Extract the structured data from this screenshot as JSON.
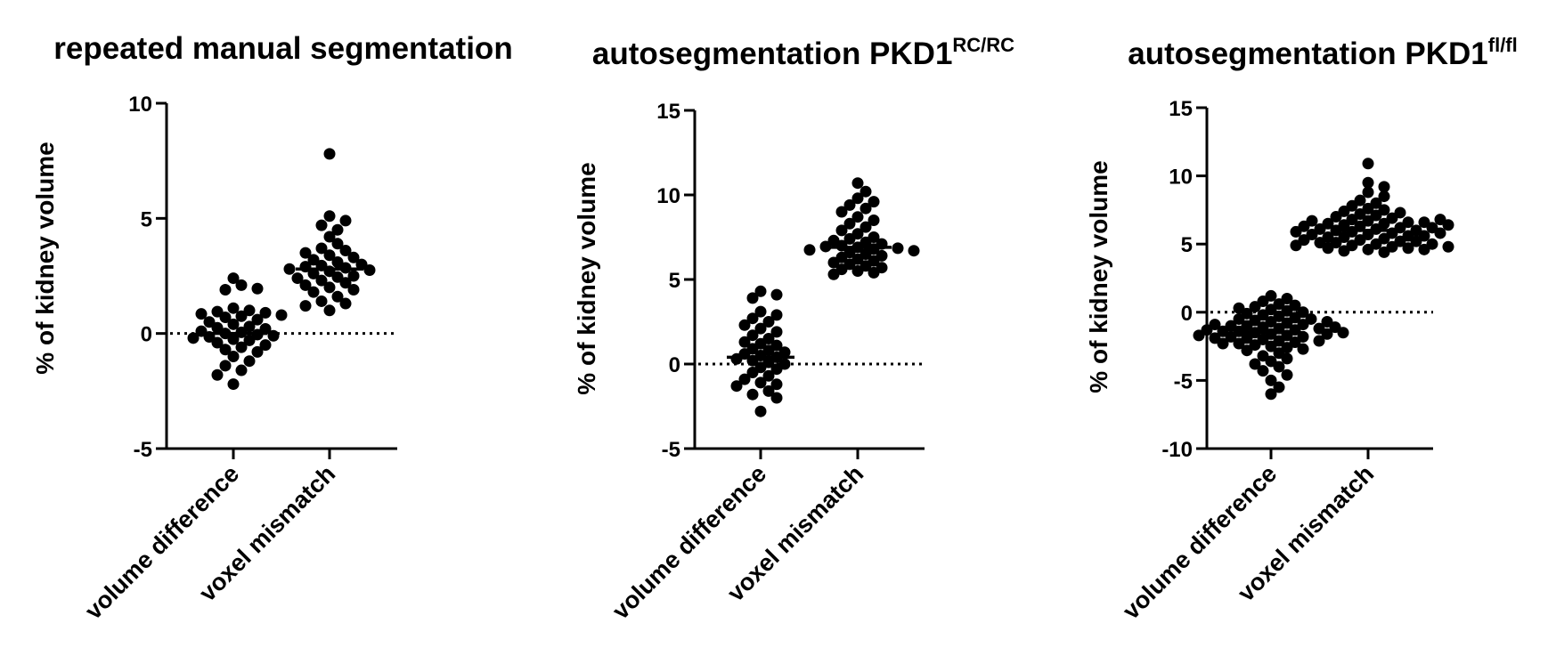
{
  "chart_data": [
    {
      "type": "scatter",
      "title": "repeated manual segmentation",
      "title_sup": "",
      "ylabel": "% of kidney volume",
      "ylim": [
        -5,
        10
      ],
      "yticks": [
        "10",
        "5",
        "0",
        "-5"
      ],
      "yticks_values": [
        10,
        5,
        0,
        -5
      ],
      "categories": [
        "volume difference",
        "voxel mismatch"
      ],
      "reference_line": {
        "y": 0,
        "style": "dotted"
      },
      "grid": false,
      "series": [
        {
          "values": [
            2.4,
            2.1,
            1.9,
            1.95,
            1.1,
            1.0,
            0.95,
            0.9,
            0.85,
            0.8,
            0.75,
            0.7,
            0.6,
            0.5,
            0.4,
            0.3,
            0.25,
            0.2,
            0.1,
            0.05,
            0.0,
            -0.05,
            -0.1,
            -0.15,
            -0.2,
            -0.25,
            -0.3,
            -0.4,
            -0.5,
            -0.6,
            -0.7,
            -0.8,
            -1.0,
            -1.2,
            -1.4,
            -1.6,
            -1.8,
            -2.2
          ],
          "median": 0.0
        },
        {
          "values": [
            7.8,
            5.1,
            4.9,
            4.7,
            4.5,
            4.2,
            3.9,
            3.7,
            3.6,
            3.5,
            3.4,
            3.3,
            3.2,
            3.1,
            3.0,
            2.95,
            2.9,
            2.85,
            2.8,
            2.75,
            2.7,
            2.6,
            2.5,
            2.45,
            2.4,
            2.3,
            2.2,
            2.1,
            2.0,
            1.9,
            1.8,
            1.6,
            1.4,
            1.3,
            1.2,
            1.0
          ],
          "median": 2.8
        }
      ]
    },
    {
      "type": "scatter",
      "title": "autosegmentation PKD1",
      "title_sup": "RC/RC",
      "ylabel": "% of kidney volume",
      "ylim": [
        -5,
        15
      ],
      "yticks": [
        "15",
        "10",
        "5",
        "0",
        "-5"
      ],
      "yticks_values": [
        15,
        10,
        5,
        0,
        -5
      ],
      "categories": [
        "volume difference",
        "voxel mismatch"
      ],
      "reference_line": {
        "y": 0,
        "style": "dotted"
      },
      "grid": false,
      "series": [
        {
          "values": [
            4.3,
            4.1,
            3.9,
            3.1,
            2.9,
            2.7,
            2.5,
            2.3,
            2.1,
            1.9,
            1.7,
            1.5,
            1.3,
            1.2,
            1.1,
            0.9,
            0.8,
            0.7,
            0.6,
            0.5,
            0.4,
            0.3,
            0.2,
            0.1,
            0.0,
            -0.2,
            -0.3,
            -0.5,
            -0.7,
            -0.9,
            -1.1,
            -1.2,
            -1.3,
            -1.6,
            -1.8,
            -2.0,
            -2.8
          ],
          "median": 0.4
        },
        {
          "values": [
            10.7,
            10.2,
            9.8,
            9.6,
            9.4,
            9.2,
            9.0,
            8.7,
            8.5,
            8.3,
            8.1,
            7.9,
            7.7,
            7.5,
            7.4,
            7.3,
            7.2,
            7.1,
            7.0,
            6.95,
            6.9,
            6.85,
            6.8,
            6.75,
            6.7,
            6.6,
            6.5,
            6.4,
            6.3,
            6.2,
            6.1,
            6.0,
            5.9,
            5.8,
            5.7,
            5.6,
            5.5,
            5.4,
            5.3
          ],
          "median": 6.9
        }
      ]
    },
    {
      "type": "scatter",
      "title": "autosegmentation PKD1",
      "title_sup": "fl/fl",
      "ylabel": "% of kidney volume",
      "ylim": [
        -10,
        15
      ],
      "yticks": [
        "15",
        "10",
        "5",
        "0",
        "-5",
        "-10"
      ],
      "yticks_values": [
        15,
        10,
        5,
        0,
        -5,
        -10
      ],
      "categories": [
        "volume difference",
        "voxel mismatch"
      ],
      "reference_line": {
        "y": 0,
        "style": "dotted"
      },
      "grid": false,
      "series": [
        {
          "values": [
            1.2,
            1.0,
            0.8,
            0.6,
            0.5,
            0.4,
            0.3,
            0.2,
            0.1,
            0.0,
            -0.1,
            -0.2,
            -0.3,
            -0.4,
            -0.5,
            -0.6,
            -0.7,
            -0.8,
            -0.9,
            -1.0,
            -1.1,
            -1.2,
            -1.3,
            -1.4,
            -1.5,
            -1.6,
            -1.7,
            -1.8,
            -1.9,
            -2.0,
            -2.1,
            -2.2,
            -2.3,
            -2.4,
            -2.5,
            -2.6,
            -2.7,
            -2.8,
            -3.0,
            -3.2,
            -3.4,
            -3.6,
            -3.8,
            -4.0,
            -4.3,
            -4.6,
            -5.0,
            -5.5,
            -6.0,
            -1.0,
            -1.2,
            -1.4,
            -1.6,
            -1.8,
            -0.5,
            -0.7,
            -0.9,
            -1.1,
            -1.3,
            -1.5,
            -1.7,
            -1.9,
            -2.1,
            -2.3
          ],
          "median": -1.5
        },
        {
          "values": [
            10.9,
            9.5,
            9.2,
            8.8,
            8.5,
            8.2,
            8.0,
            7.8,
            7.6,
            7.5,
            7.4,
            7.3,
            7.2,
            7.1,
            7.0,
            6.9,
            6.8,
            6.7,
            6.6,
            6.5,
            6.4,
            6.3,
            6.2,
            6.1,
            6.0,
            5.9,
            5.8,
            5.7,
            5.6,
            5.5,
            5.4,
            5.3,
            5.2,
            5.1,
            5.0,
            4.9,
            4.8,
            4.7,
            4.6,
            4.5,
            4.4,
            6.0,
            6.1,
            6.2,
            6.3,
            6.4,
            6.5,
            6.6,
            6.7,
            6.8,
            5.5,
            5.6,
            5.7,
            5.8,
            5.9,
            5.3,
            5.2,
            5.1,
            5.0,
            4.9,
            4.8,
            4.7,
            4.6
          ],
          "median": 6.0
        }
      ]
    }
  ]
}
